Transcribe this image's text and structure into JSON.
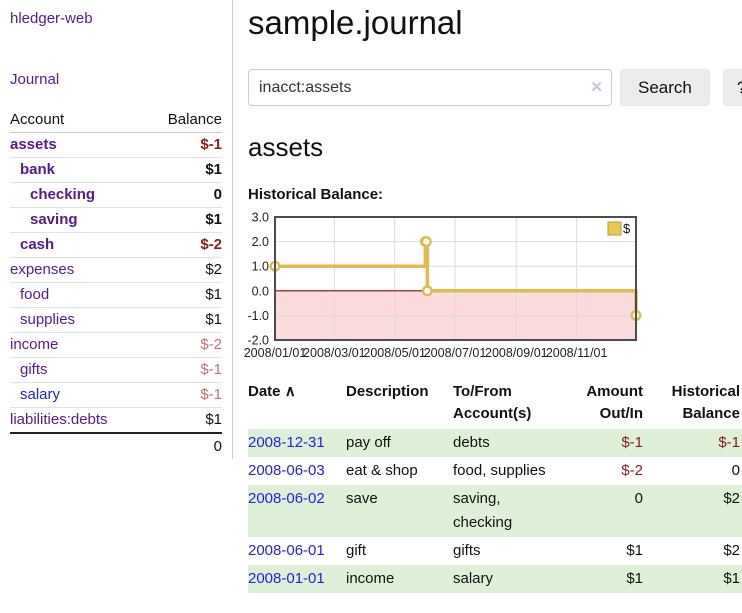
{
  "app": {
    "title": "hledger-web"
  },
  "nav": {
    "journal": "Journal"
  },
  "sidebar": {
    "header": {
      "account": "Account",
      "balance": "Balance"
    },
    "accounts": [
      {
        "name": "assets",
        "indent": 0,
        "bold": true,
        "balance": "$-1"
      },
      {
        "name": "bank",
        "indent": 1,
        "bold": true,
        "balance": "$1"
      },
      {
        "name": "checking",
        "indent": 2,
        "bold": true,
        "balance": "0"
      },
      {
        "name": "saving",
        "indent": 2,
        "bold": true,
        "balance": "$1"
      },
      {
        "name": "cash",
        "indent": 1,
        "bold": true,
        "balance": "$-2"
      },
      {
        "name": "expenses",
        "indent": 0,
        "bold": false,
        "balance": "$2"
      },
      {
        "name": "food",
        "indent": 1,
        "bold": false,
        "balance": "$1"
      },
      {
        "name": "supplies",
        "indent": 1,
        "bold": false,
        "balance": "$1"
      },
      {
        "name": "income",
        "indent": 0,
        "bold": false,
        "balance": "$-2",
        "muted_negative": true
      },
      {
        "name": "gifts",
        "indent": 1,
        "bold": false,
        "balance": "$-1",
        "muted_negative": true
      },
      {
        "name": "salary",
        "indent": 1,
        "bold": false,
        "balance": "$-1",
        "muted_negative": true,
        "link_style": "blue"
      },
      {
        "name": "liabilities:debts",
        "indent": 0,
        "bold": false,
        "balance": "$1"
      }
    ],
    "total": "0"
  },
  "header": {
    "title": "sample.journal"
  },
  "search": {
    "value": "inacct:assets",
    "clear_icon": "✕",
    "button": "Search",
    "help_button": "?"
  },
  "account_page": {
    "title": "assets",
    "chart_label": "Historical Balance:"
  },
  "chart_data": {
    "type": "line",
    "step": "after",
    "series": [
      {
        "name": "$",
        "x": [
          "2008-01-01",
          "2008-06-01",
          "2008-06-02",
          "2008-06-03",
          "2008-12-31"
        ],
        "y": [
          1,
          2,
          2,
          0,
          -1
        ]
      }
    ],
    "xlim": [
      "2008-01-01",
      "2008-12-31"
    ],
    "ylim": [
      -2,
      3
    ],
    "yticks": [
      3,
      2,
      1,
      0,
      -1,
      -2
    ],
    "ytick_labels": [
      "3.0",
      "2.0",
      "1.0",
      "0.0",
      "-1.0",
      "-2.0"
    ],
    "xticks": [
      "2008-01-01",
      "2008-03-01",
      "2008-05-01",
      "2008-07-01",
      "2008-09-01",
      "2008-11-01"
    ],
    "xtick_labels": [
      "2008/01/01",
      "2008/03/01",
      "2008/05/01",
      "2008/07/01",
      "2008/09/01",
      "2008/11/01"
    ],
    "grid": true,
    "legend_position": "top-right",
    "negative_region_shaded": true
  },
  "register": {
    "columns": {
      "date": "Date",
      "sort_icon": "∧",
      "description": "Description",
      "accounts": "To/From Account(s)",
      "amount": "Amount Out/In",
      "balance": "Historical Balance"
    },
    "rows": [
      {
        "date": "2008-12-31",
        "description": "pay off",
        "accounts": "debts",
        "amount": "$-1",
        "balance": "$-1"
      },
      {
        "date": "2008-06-03",
        "description": "eat & shop",
        "accounts": "food, supplies",
        "amount": "$-2",
        "balance": "0"
      },
      {
        "date": "2008-06-02",
        "description": "save",
        "accounts": "saving,\nchecking",
        "amount": "0",
        "balance": "$2"
      },
      {
        "date": "2008-06-01",
        "description": "gift",
        "accounts": "gifts",
        "amount": "$1",
        "balance": "$2"
      },
      {
        "date": "2008-01-01",
        "description": "income",
        "accounts": "salary",
        "amount": "$1",
        "balance": "$1"
      }
    ]
  },
  "colors": {
    "link_purple": "#551a8b",
    "link_blue": "#2222dd",
    "negative": "#8b1a1a",
    "negative_muted": "#bf7272",
    "row_stripe_green": "#dff0d8",
    "chart_line_gold": "#e0ba4d",
    "chart_negative_region": "#fbdbdb",
    "chart_zero_line": "#8b0000",
    "chart_border": "#4d4d4d",
    "button_bg": "#ececec"
  }
}
